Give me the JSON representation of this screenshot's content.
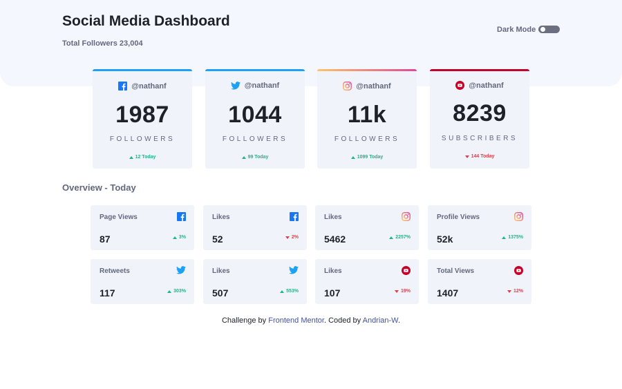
{
  "header": {
    "title": "Social Media Dashboard",
    "total_followers": "Total Followers 23,004",
    "dark_mode_label": "Dark Mode"
  },
  "colors": {
    "facebook": "#1877f2",
    "twitter": "#1da1f2",
    "instagram_from": "#fdc468",
    "instagram_to": "#df4996",
    "youtube": "#c4032a",
    "up": "#1eb589",
    "down": "#dc414c"
  },
  "cards": [
    {
      "platform": "facebook-icon",
      "handle": "@nathanf",
      "count": "1987",
      "unit": "FOLLOWERS",
      "today": "12 Today",
      "trend": "up"
    },
    {
      "platform": "twitter-icon",
      "handle": "@nathanf",
      "count": "1044",
      "unit": "FOLLOWERS",
      "today": "99 Today",
      "trend": "up"
    },
    {
      "platform": "instagram-icon",
      "handle": "@nathanf",
      "count": "11k",
      "unit": "FOLLOWERS",
      "today": "1099 Today",
      "trend": "up"
    },
    {
      "platform": "youtube-icon",
      "handle": "@nathanf",
      "count": "8239",
      "unit": "SUBSCRIBERS",
      "today": "144 Today",
      "trend": "down"
    }
  ],
  "overview": {
    "title": "Overview - Today",
    "items": [
      {
        "label": "Page Views",
        "icon": "facebook-icon",
        "value": "87",
        "pct": "3%",
        "trend": "up"
      },
      {
        "label": "Likes",
        "icon": "facebook-icon",
        "value": "52",
        "pct": "2%",
        "trend": "down"
      },
      {
        "label": "Likes",
        "icon": "instagram-icon",
        "value": "5462",
        "pct": "2257%",
        "trend": "up"
      },
      {
        "label": "Profile Views",
        "icon": "instagram-icon",
        "value": "52k",
        "pct": "1375%",
        "trend": "up"
      },
      {
        "label": "Retweets",
        "icon": "twitter-icon",
        "value": "117",
        "pct": "303%",
        "trend": "up"
      },
      {
        "label": "Likes",
        "icon": "twitter-icon",
        "value": "507",
        "pct": "553%",
        "trend": "up"
      },
      {
        "label": "Likes",
        "icon": "youtube-icon",
        "value": "107",
        "pct": "19%",
        "trend": "down"
      },
      {
        "label": "Total Views",
        "icon": "youtube-icon",
        "value": "1407",
        "pct": "12%",
        "trend": "down"
      }
    ]
  },
  "footer": {
    "prefix": "Challenge by",
    "link1": "Frontend Mentor",
    "middle": ". Coded by",
    "link2": "Andrian-W",
    "suffix": "."
  }
}
